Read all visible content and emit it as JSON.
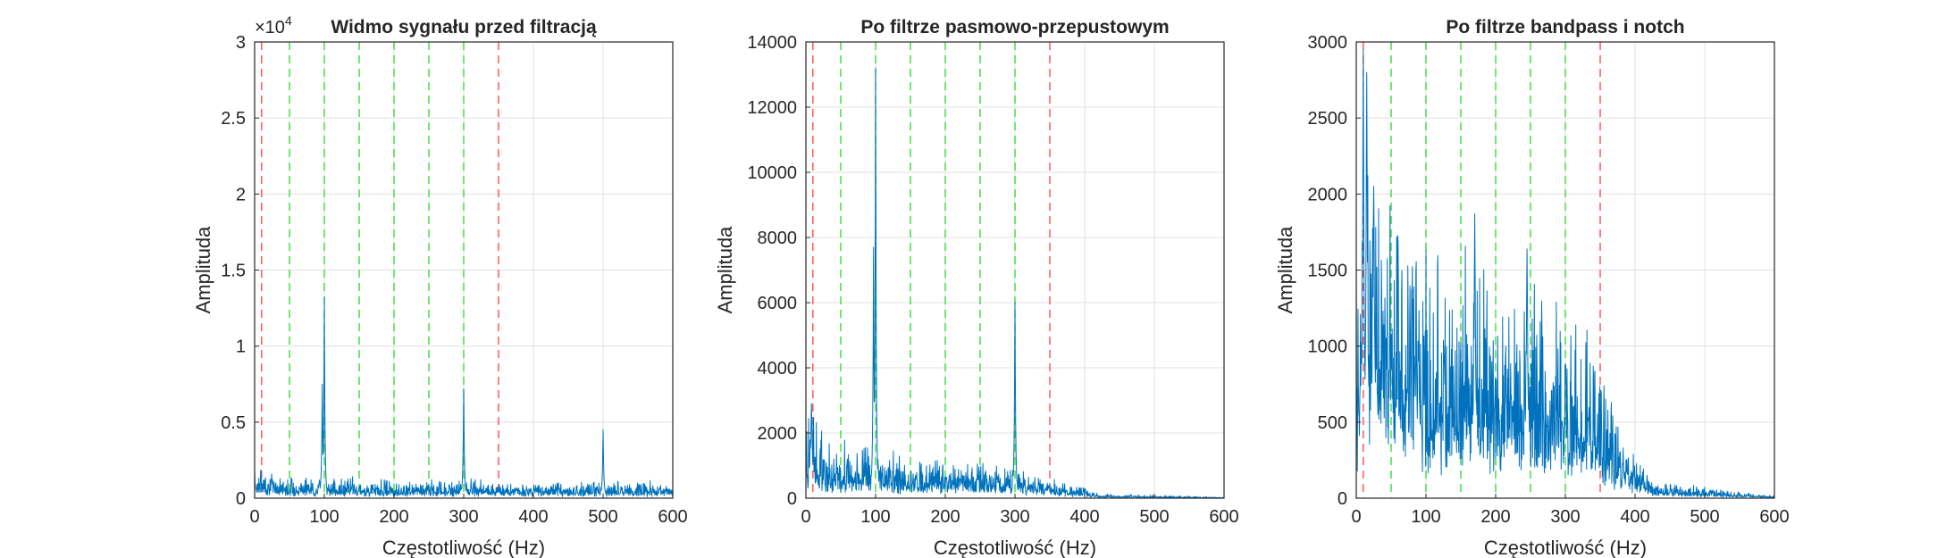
{
  "chart_data": [
    {
      "type": "line",
      "title": "Widmo sygnału przed filtracją",
      "xlabel": "Częstotliwość (Hz)",
      "ylabel": "Amplituda",
      "xlim": [
        0,
        600
      ],
      "ylim": [
        0,
        30000
      ],
      "xticks": [
        "0",
        "100",
        "200",
        "300",
        "400",
        "500",
        "600"
      ],
      "yticks": [
        "0",
        "0.5",
        "1",
        "1.5",
        "2",
        "2.5",
        "3"
      ],
      "exponent_label": "×10",
      "exponent_power": "4",
      "grid": true,
      "red_dashed_x": [
        10,
        350
      ],
      "green_dashed_x": [
        50,
        100,
        150,
        200,
        250,
        300
      ],
      "series_color": "#0072BD",
      "peaks": [
        {
          "x": 97,
          "y": 7500
        },
        {
          "x": 100,
          "y": 13200
        },
        {
          "x": 300,
          "y": 7200
        },
        {
          "x": 500,
          "y": 4500
        }
      ],
      "baseline_profile": [
        [
          0,
          1300
        ],
        [
          50,
          800
        ],
        [
          150,
          700
        ],
        [
          350,
          650
        ],
        [
          600,
          600
        ]
      ]
    },
    {
      "type": "line",
      "title": "Po filtrze pasmowo-przepustowym",
      "xlabel": "Częstotliwość (Hz)",
      "ylabel": "Amplituda",
      "xlim": [
        0,
        600
      ],
      "ylim": [
        0,
        14000
      ],
      "xticks": [
        "0",
        "100",
        "200",
        "300",
        "400",
        "500",
        "600"
      ],
      "yticks": [
        "0",
        "2000",
        "4000",
        "6000",
        "8000",
        "10000",
        "12000",
        "14000"
      ],
      "grid": true,
      "red_dashed_x": [
        10,
        350
      ],
      "green_dashed_x": [
        50,
        100,
        150,
        200,
        250,
        300
      ],
      "series_color": "#0072BD",
      "peaks": [
        {
          "x": 8,
          "y": 2900
        },
        {
          "x": 97,
          "y": 7700
        },
        {
          "x": 100,
          "y": 13200
        },
        {
          "x": 300,
          "y": 6000
        }
      ],
      "baseline_profile": [
        [
          0,
          1800
        ],
        [
          30,
          1000
        ],
        [
          150,
          700
        ],
        [
          300,
          600
        ],
        [
          360,
          350
        ],
        [
          420,
          80
        ],
        [
          600,
          20
        ]
      ]
    },
    {
      "type": "line",
      "title": "Po filtrze bandpass i notch",
      "xlabel": "Częstotliwość (Hz)",
      "ylabel": "Amplituda",
      "xlim": [
        0,
        600
      ],
      "ylim": [
        0,
        3000
      ],
      "xticks": [
        "0",
        "100",
        "200",
        "300",
        "400",
        "500",
        "600"
      ],
      "yticks": [
        "0",
        "500",
        "1000",
        "1500",
        "2000",
        "2500",
        "3000"
      ],
      "grid": true,
      "red_dashed_x": [
        10,
        350
      ],
      "green_dashed_x": [
        50,
        100,
        150,
        200,
        250,
        300
      ],
      "series_color": "#0072BD",
      "peaks": [
        {
          "x": 10,
          "y": 2950
        },
        {
          "x": 15,
          "y": 2800
        },
        {
          "x": 25,
          "y": 2050
        },
        {
          "x": 170,
          "y": 1870
        },
        {
          "x": 245,
          "y": 1640
        }
      ],
      "baseline_profile": [
        [
          0,
          1000
        ],
        [
          20,
          1300
        ],
        [
          100,
          900
        ],
        [
          250,
          800
        ],
        [
          340,
          600
        ],
        [
          380,
          250
        ],
        [
          430,
          60
        ],
        [
          600,
          10
        ]
      ]
    }
  ]
}
